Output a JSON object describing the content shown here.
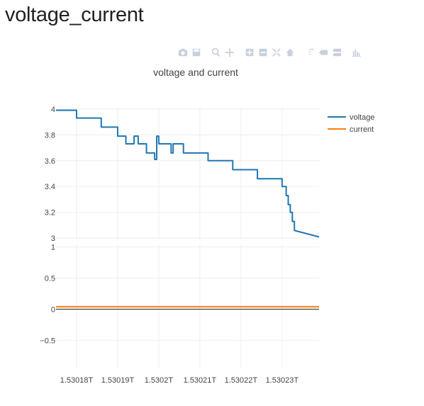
{
  "page": {
    "heading": "voltage_current"
  },
  "modebar": {
    "icons": [
      "camera-icon",
      "save-icon",
      "zoom-icon",
      "pan-icon",
      "zoom-in-icon",
      "zoom-out-icon",
      "autoscale-icon",
      "home-icon",
      "spike-lines-icon",
      "hover-closest-icon",
      "hover-compare-icon",
      "plotly-logo-icon"
    ]
  },
  "colors": {
    "voltage": "#1f77b4",
    "current": "#ff7f0e",
    "grid": "#eeeeee",
    "zero_line": "#444444"
  },
  "chart_data": {
    "type": "line",
    "title": "voltage and current",
    "legend_position": "top-right",
    "xlim": [
      1.530175,
      1.530239
    ],
    "x_tick_values": [
      1.53018,
      1.53019,
      1.5302,
      1.53021,
      1.53022,
      1.53023
    ],
    "x_tick_labels": [
      "1.53018T",
      "1.53019T",
      "1.5302T",
      "1.53021T",
      "1.53022T",
      "1.53023T"
    ],
    "subplots": [
      {
        "name": "top",
        "ylim": [
          2.99,
          4.01
        ],
        "y_ticks": [
          3,
          3.2,
          3.4,
          3.6,
          3.8,
          4
        ],
        "y_tick_labels": [
          "3",
          "3.2",
          "3.4",
          "3.6",
          "3.8",
          "4"
        ],
        "grid": true,
        "series": [
          {
            "name": "voltage",
            "color": "#1f77b4",
            "x": [
              1.530175,
              1.53018,
              1.53018,
              1.530186,
              1.530186,
              1.53019,
              1.53019,
              1.530192,
              1.530192,
              1.530194,
              1.530194,
              1.530195,
              1.530195,
              1.530197,
              1.530197,
              1.530199,
              1.530199,
              1.5301995,
              1.5301995,
              1.5302,
              1.5302,
              1.5302002,
              1.5302002,
              1.530203,
              1.530203,
              1.5302035,
              1.5302035,
              1.530204,
              1.530204,
              1.530206,
              1.530206,
              1.530212,
              1.530212,
              1.530218,
              1.530218,
              1.530224,
              1.530224,
              1.53023,
              1.53023,
              1.530231,
              1.530231,
              1.5302315,
              1.5302315,
              1.530232,
              1.530232,
              1.5302325,
              1.5302325,
              1.530233,
              1.530233,
              1.530239
            ],
            "y": [
              3.99,
              3.99,
              3.93,
              3.93,
              3.86,
              3.86,
              3.79,
              3.79,
              3.73,
              3.73,
              3.79,
              3.79,
              3.73,
              3.73,
              3.66,
              3.66,
              3.61,
              3.61,
              3.79,
              3.79,
              3.73,
              3.73,
              3.73,
              3.73,
              3.66,
              3.66,
              3.73,
              3.73,
              3.73,
              3.73,
              3.66,
              3.66,
              3.6,
              3.6,
              3.53,
              3.53,
              3.46,
              3.46,
              3.4,
              3.4,
              3.33,
              3.33,
              3.26,
              3.26,
              3.2,
              3.2,
              3.13,
              3.13,
              3.06,
              3.01
            ]
          }
        ]
      },
      {
        "name": "bottom",
        "ylim": [
          -0.95,
          1.05
        ],
        "y_ticks": [
          -0.5,
          0,
          0.5,
          1
        ],
        "y_tick_labels": [
          "−0.5",
          "0",
          "0.5",
          "1"
        ],
        "grid": true,
        "series": [
          {
            "name": "current",
            "color": "#ff7f0e",
            "x": [
              1.530175,
              1.530239
            ],
            "y": [
              0.04,
              0.04
            ]
          }
        ]
      }
    ],
    "legend": [
      "voltage",
      "current"
    ]
  }
}
